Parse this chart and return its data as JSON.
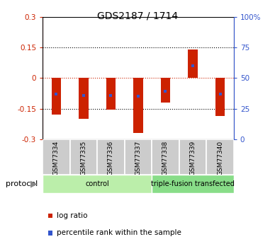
{
  "title": "GDS2187 / 1714",
  "samples": [
    "GSM77334",
    "GSM77335",
    "GSM77336",
    "GSM77337",
    "GSM77338",
    "GSM77339",
    "GSM77340"
  ],
  "log_ratio_bar_bottom": [
    -0.18,
    -0.2,
    -0.155,
    -0.27,
    -0.12,
    0.0,
    -0.185
  ],
  "log_ratio_bar_height": [
    0.18,
    0.2,
    0.155,
    0.27,
    0.12,
    0.14,
    0.185
  ],
  "percentile_rank": [
    0.37,
    0.36,
    0.36,
    0.35,
    0.39,
    0.6,
    0.37
  ],
  "ylim": [
    -0.3,
    0.3
  ],
  "yticks_left": [
    -0.3,
    -0.15,
    0,
    0.15,
    0.3
  ],
  "yticks_left_labels": [
    "-0.3",
    "-0.15",
    "0",
    "0.15",
    "0.3"
  ],
  "yticks_right_pos": [
    -0.3,
    -0.15,
    0.0,
    0.15,
    0.3
  ],
  "yticks_right_labels": [
    "0",
    "25",
    "50",
    "75",
    "100%"
  ],
  "bar_color": "#cc2200",
  "bar_width": 0.35,
  "percentile_color": "#3355cc",
  "zero_line_color": "#cc2200",
  "protocol_groups": [
    {
      "label": "control",
      "start": 0,
      "end": 4,
      "color": "#bbeeaa"
    },
    {
      "label": "triple-fusion transfected",
      "start": 4,
      "end": 7,
      "color": "#88dd88"
    }
  ],
  "legend_items": [
    {
      "color": "#cc2200",
      "label": "log ratio"
    },
    {
      "color": "#3355cc",
      "label": "percentile rank within the sample"
    }
  ],
  "protocol_label": "protocol",
  "sample_box_color": "#cccccc",
  "background_color": "#ffffff"
}
